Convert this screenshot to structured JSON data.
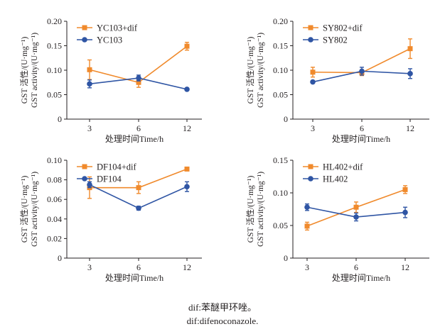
{
  "colors": {
    "dif": "#f08a2c",
    "ctrl": "#2f55a4",
    "axis": "#231f20"
  },
  "ylabel_cn": "GST 活性/(U·mg⁻¹)",
  "ylabel_en": "GST activity/(U·mg⁻¹)",
  "xlabel": "处理时间Time/h",
  "caption": {
    "line1": "dif:苯醚甲环唑。",
    "line2": "dif:difenoconazole."
  },
  "chart_data": [
    {
      "type": "line",
      "categories": [
        "3",
        "6",
        "12"
      ],
      "yticks": [
        "0",
        "0.05",
        "0.10",
        "0.15",
        "0.20"
      ],
      "ylim": [
        0,
        0.2
      ],
      "legend_position": "top-left",
      "series": [
        {
          "name": "YC103+dif",
          "values": [
            0.101,
            0.075,
            0.149
          ],
          "errors": [
            0.02,
            0.01,
            0.008
          ],
          "color": "#f08a2c",
          "marker": "square"
        },
        {
          "name": "YC103",
          "values": [
            0.072,
            0.084,
            0.061
          ],
          "errors": [
            0.008,
            0.006,
            0.002
          ],
          "color": "#2f55a4",
          "marker": "circle"
        }
      ]
    },
    {
      "type": "line",
      "categories": [
        "3",
        "6",
        "12"
      ],
      "yticks": [
        "0",
        "0.05",
        "0.10",
        "0.15",
        "0.20"
      ],
      "ylim": [
        0,
        0.2
      ],
      "legend_position": "top-left",
      "series": [
        {
          "name": "SY802+dif",
          "values": [
            0.096,
            0.095,
            0.144
          ],
          "errors": [
            0.01,
            0.006,
            0.02
          ],
          "color": "#f08a2c",
          "marker": "square"
        },
        {
          "name": "SY802",
          "values": [
            0.076,
            0.098,
            0.093
          ],
          "errors": [
            0.002,
            0.008,
            0.01
          ],
          "color": "#2f55a4",
          "marker": "circle"
        }
      ]
    },
    {
      "type": "line",
      "categories": [
        "3",
        "6",
        "12"
      ],
      "yticks": [
        "0",
        "0.02",
        "0.04",
        "0.06",
        "0.08",
        "0.10"
      ],
      "ylim": [
        0,
        0.1
      ],
      "legend_position": "top-left",
      "series": [
        {
          "name": "DF104+dif",
          "values": [
            0.072,
            0.072,
            0.091
          ],
          "errors": [
            0.011,
            0.006,
            0.001
          ],
          "color": "#f08a2c",
          "marker": "square"
        },
        {
          "name": "DF104",
          "values": [
            0.075,
            0.051,
            0.073
          ],
          "errors": [
            0.003,
            0.002,
            0.005
          ],
          "color": "#2f55a4",
          "marker": "circle"
        }
      ]
    },
    {
      "type": "line",
      "categories": [
        "3",
        "6",
        "12"
      ],
      "yticks": [
        "0",
        "0.05",
        "0.10",
        "0.15"
      ],
      "ylim": [
        0,
        0.15
      ],
      "legend_position": "top-left",
      "series": [
        {
          "name": "HL402+dif",
          "values": [
            0.049,
            0.078,
            0.105
          ],
          "errors": [
            0.006,
            0.008,
            0.006
          ],
          "color": "#f08a2c",
          "marker": "square"
        },
        {
          "name": "HL402",
          "values": [
            0.078,
            0.063,
            0.07
          ],
          "errors": [
            0.005,
            0.006,
            0.008
          ],
          "color": "#2f55a4",
          "marker": "circle"
        }
      ]
    }
  ]
}
